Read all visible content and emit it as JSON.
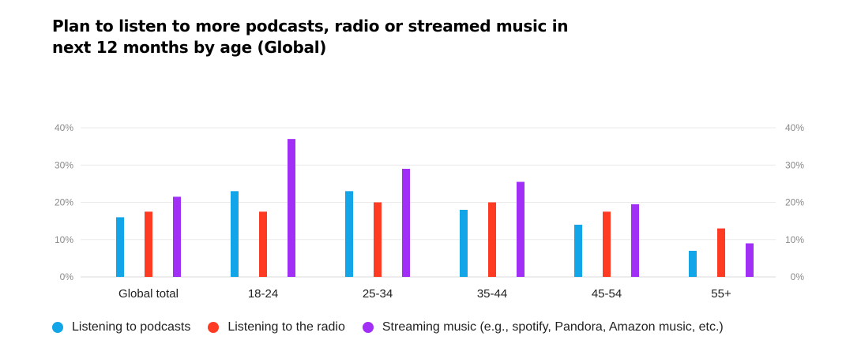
{
  "chart_data": {
    "type": "bar",
    "title": "Plan to listen to more podcasts, radio or streamed music in next 12 months by age (Global)",
    "categories": [
      "Global total",
      "18-24",
      "25-34",
      "35-44",
      "45-54",
      "55+"
    ],
    "series": [
      {
        "name": "Listening to podcasts",
        "color": "#12a5e8",
        "values": [
          16,
          23,
          23,
          18,
          14,
          7
        ]
      },
      {
        "name": "Listening to the radio",
        "color": "#ff3b24",
        "values": [
          17.5,
          17.5,
          20,
          20,
          17.5,
          13
        ]
      },
      {
        "name": "Streaming music (e.g., spotify, Pandora, Amazon music, etc.)",
        "color": "#a22ff5",
        "values": [
          21.5,
          37,
          29,
          25.5,
          19.5,
          9
        ]
      }
    ],
    "ylim": [
      0,
      40
    ],
    "yticks": [
      "0%",
      "10%",
      "20%",
      "30%",
      "40%"
    ],
    "ytick_values": [
      0,
      10,
      20,
      30,
      40
    ],
    "grid": true,
    "legend_position": "bottom-left",
    "secondary_axis": "right"
  }
}
